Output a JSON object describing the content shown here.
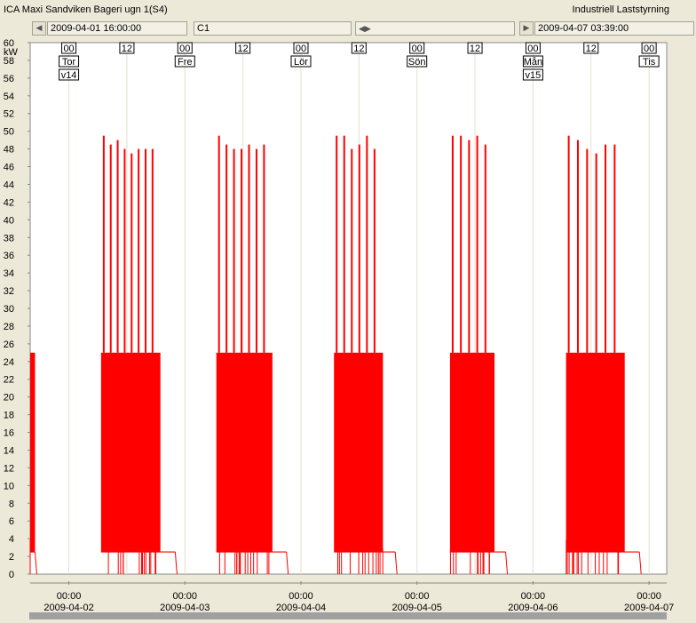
{
  "window": {
    "title": "ICA Maxi Sandviken Bageri ugn 1(S4)",
    "app_name": "Industriell Laststyrning"
  },
  "nav": {
    "start_time": "2009-04-01 16:00:00",
    "channel": "C1",
    "end_time": "2009-04-07 03:39:00",
    "first_icon": "skip-first-icon",
    "pan_icon": "pan-arrows-icon",
    "last_icon": "skip-last-icon"
  },
  "chart_data": {
    "type": "area",
    "title": "",
    "ylabel": "kW",
    "ylim": [
      0,
      60
    ],
    "yticks": [
      0,
      2,
      4,
      6,
      8,
      10,
      12,
      14,
      16,
      18,
      20,
      22,
      24,
      26,
      28,
      30,
      32,
      34,
      36,
      38,
      40,
      42,
      44,
      46,
      48,
      50,
      52,
      54,
      56,
      58,
      60
    ],
    "xlim": [
      "2009-04-01 16:00",
      "2009-04-07 03:39"
    ],
    "x_axis_ticks": [
      {
        "time": "00:00",
        "date": "2009-04-02"
      },
      {
        "time": "00:00",
        "date": "2009-04-03"
      },
      {
        "time": "00:00",
        "date": "2009-04-04"
      },
      {
        "time": "00:00",
        "date": "2009-04-05"
      },
      {
        "time": "00:00",
        "date": "2009-04-06"
      },
      {
        "time": "00:00",
        "date": "2009-04-07"
      }
    ],
    "top_markers": [
      {
        "label": "00",
        "day": "Tor",
        "week": "v14"
      },
      {
        "label": "12"
      },
      {
        "label": "00",
        "day": "Fre"
      },
      {
        "label": "12"
      },
      {
        "label": "00",
        "day": "Lör"
      },
      {
        "label": "12"
      },
      {
        "label": "00",
        "day": "Sön"
      },
      {
        "label": "12"
      },
      {
        "label": "00",
        "day": "Mån",
        "week": "v15"
      },
      {
        "label": "12"
      },
      {
        "label": "00",
        "day": "Tis"
      }
    ],
    "series": [
      {
        "color": "#ff0000",
        "blocks": [
          {
            "start": "2009-04-01 16:00",
            "end": "2009-04-01 17:00",
            "base": 2.5,
            "peak": 25,
            "spikes": []
          },
          {
            "start": "2009-04-02 06:40",
            "end": "2009-04-02 22:00",
            "base": 2.5,
            "peak": 25,
            "spikes": [
              49.5,
              48.5,
              49,
              48,
              47.5,
              48,
              48,
              48
            ]
          },
          {
            "start": "2009-04-03 06:30",
            "end": "2009-04-03 21:00",
            "base": 2.5,
            "peak": 25,
            "spikes": [
              49.5,
              48.5,
              48,
              48,
              48.5,
              48,
              48.5
            ]
          },
          {
            "start": "2009-04-04 06:50",
            "end": "2009-04-04 19:30",
            "base": 2.5,
            "peak": 25,
            "spikes": [
              49.5,
              49.5,
              48,
              48.5,
              49.5,
              48
            ]
          },
          {
            "start": "2009-04-05 06:50",
            "end": "2009-04-05 18:20",
            "base": 2.5,
            "peak": 25,
            "spikes": [
              49.5,
              49.5,
              49,
              49.5,
              48.5
            ]
          },
          {
            "start": "2009-04-06 06:50",
            "end": "2009-04-06 22:00",
            "base": 2.5,
            "peak": 25,
            "spikes": [
              49.5,
              49,
              48,
              47.5,
              48.5,
              48.5
            ]
          }
        ]
      }
    ],
    "grid": true,
    "legend": "none"
  },
  "colors": {
    "series": "#ff0000",
    "grid": "#e4e2c8",
    "background": "#ffffff",
    "frame": "#ece9d8"
  }
}
